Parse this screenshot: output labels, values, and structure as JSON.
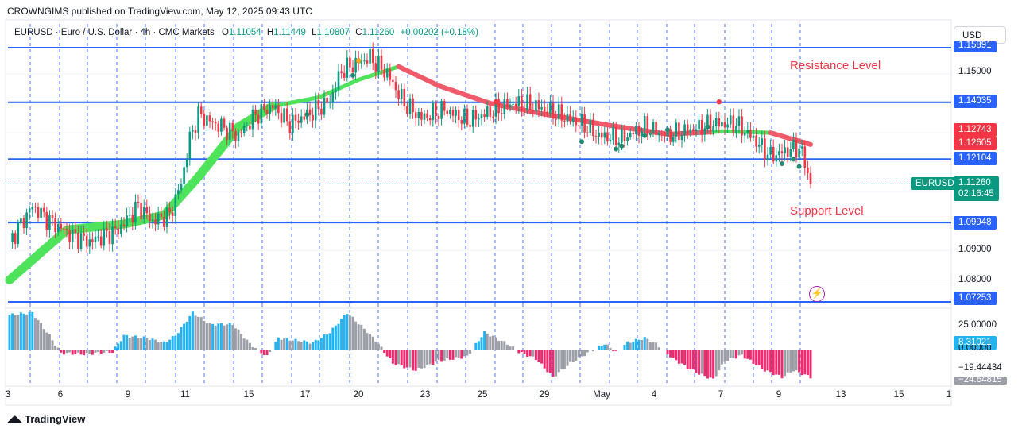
{
  "publisher": "CROWNGIMS published on TradingView.com, May 12, 2025 09:43 UTC",
  "legend": {
    "symbol": "EURUSD · Euro / U.S. Dollar · 4h · CMC Markets",
    "o_label": "O",
    "o": "1.11054",
    "h_label": "H",
    "h": "1.11449",
    "l_label": "L",
    "l": "1.10807",
    "c_label": "C",
    "c": "1.11260",
    "change": "+0.00202 (+0.18%)"
  },
  "currency": "USD",
  "annotations": {
    "resistance": "Resistance Level",
    "support": "Support Level"
  },
  "branding": {
    "logo": "TradingView"
  },
  "colors": {
    "up": "#089981",
    "down": "#f23645",
    "level": "#2962ff",
    "ma_up": "#4ee35a",
    "ma_down": "#f05a6a",
    "hist_pos": "#22b3f0",
    "hist_neg": "#ee2a6e",
    "hist_neutral": "#9c9ea8"
  },
  "price_axis": {
    "ticks": [
      "1.15000",
      "1.09000",
      "1.08000"
    ],
    "level_tags": [
      "1.15891",
      "1.14035",
      "1.12104",
      "1.09948",
      "1.07253"
    ],
    "red_tags": [
      "1.12743",
      "1.12605"
    ],
    "symbol_tag": "EURUSD",
    "last_price": "1.11260",
    "countdown": "02:16:45"
  },
  "osc_axis": {
    "ticks": [
      "25.00000",
      "0.00000",
      "−19.44434",
      "−24.64815"
    ],
    "current": "8.31021"
  },
  "time_axis": [
    "3",
    "6",
    "9",
    "11",
    "15",
    "17",
    "20",
    "23",
    "25",
    "29",
    "May",
    "4",
    "7",
    "9",
    "13",
    "15",
    "1"
  ],
  "chart_data": {
    "type": "candlestick",
    "symbol": "EURUSD",
    "timeframe": "4h",
    "price_range": [
      1.0725,
      1.159
    ],
    "horizontal_levels": [
      1.15891,
      1.14035,
      1.12104,
      1.09948,
      1.07253
    ],
    "anchors": [
      [
        0,
        1.093
      ],
      [
        8,
        1.105
      ],
      [
        14,
        1.1
      ],
      [
        22,
        1.095
      ],
      [
        28,
        1.093
      ],
      [
        38,
        1.097
      ],
      [
        45,
        1.105
      ],
      [
        50,
        1.1
      ],
      [
        56,
        1.102
      ],
      [
        60,
        1.113
      ],
      [
        63,
        1.128
      ],
      [
        66,
        1.136
      ],
      [
        72,
        1.133
      ],
      [
        80,
        1.129
      ],
      [
        86,
        1.136
      ],
      [
        92,
        1.139
      ],
      [
        98,
        1.133
      ],
      [
        106,
        1.137
      ],
      [
        112,
        1.141
      ],
      [
        116,
        1.151
      ],
      [
        120,
        1.153
      ],
      [
        126,
        1.1555
      ],
      [
        132,
        1.15
      ],
      [
        138,
        1.14
      ],
      [
        144,
        1.135
      ],
      [
        152,
        1.138
      ],
      [
        160,
        1.134
      ],
      [
        168,
        1.137
      ],
      [
        176,
        1.14
      ],
      [
        184,
        1.139
      ],
      [
        192,
        1.136
      ],
      [
        200,
        1.133
      ],
      [
        206,
        1.129
      ],
      [
        214,
        1.128
      ],
      [
        222,
        1.132
      ],
      [
        230,
        1.129
      ],
      [
        238,
        1.131
      ],
      [
        246,
        1.133
      ],
      [
        254,
        1.133
      ],
      [
        260,
        1.128
      ],
      [
        266,
        1.122
      ],
      [
        272,
        1.124
      ],
      [
        276,
        1.125
      ],
      [
        278,
        1.12
      ],
      [
        280,
        1.1126
      ]
    ],
    "ma_anchors": [
      [
        0,
        1.08
      ],
      [
        20,
        1.097
      ],
      [
        40,
        1.099
      ],
      [
        54,
        1.102
      ],
      [
        66,
        1.115
      ],
      [
        80,
        1.132
      ],
      [
        92,
        1.139
      ],
      [
        108,
        1.142
      ],
      [
        122,
        1.148
      ],
      [
        136,
        1.1525
      ],
      [
        150,
        1.146
      ],
      [
        168,
        1.14
      ],
      [
        186,
        1.1365
      ],
      [
        210,
        1.1325
      ],
      [
        230,
        1.1295
      ],
      [
        250,
        1.1305
      ],
      [
        266,
        1.13
      ],
      [
        280,
        1.126
      ]
    ],
    "oscillator_range": [
      -28,
      40
    ],
    "oscillator_anchors": [
      [
        0,
        30
      ],
      [
        8,
        32
      ],
      [
        14,
        12
      ],
      [
        18,
        -3
      ],
      [
        26,
        -4
      ],
      [
        36,
        -2
      ],
      [
        40,
        12
      ],
      [
        48,
        10
      ],
      [
        54,
        6
      ],
      [
        58,
        12
      ],
      [
        64,
        32
      ],
      [
        70,
        22
      ],
      [
        78,
        22
      ],
      [
        84,
        5
      ],
      [
        90,
        -6
      ],
      [
        94,
        10
      ],
      [
        100,
        8
      ],
      [
        106,
        6
      ],
      [
        112,
        15
      ],
      [
        118,
        32
      ],
      [
        124,
        18
      ],
      [
        128,
        8
      ],
      [
        134,
        -12
      ],
      [
        142,
        -18
      ],
      [
        150,
        -10
      ],
      [
        160,
        -6
      ],
      [
        166,
        15
      ],
      [
        170,
        10
      ],
      [
        174,
        5
      ],
      [
        178,
        -2
      ],
      [
        184,
        -8
      ],
      [
        190,
        -24
      ],
      [
        196,
        -12
      ],
      [
        202,
        -3
      ],
      [
        208,
        5
      ],
      [
        212,
        -2
      ],
      [
        216,
        6
      ],
      [
        222,
        10
      ],
      [
        226,
        5
      ],
      [
        232,
        -8
      ],
      [
        240,
        -20
      ],
      [
        246,
        -26
      ],
      [
        250,
        -10
      ],
      [
        256,
        -5
      ],
      [
        264,
        -18
      ],
      [
        270,
        -24
      ],
      [
        274,
        -18
      ],
      [
        280,
        -24
      ]
    ]
  }
}
